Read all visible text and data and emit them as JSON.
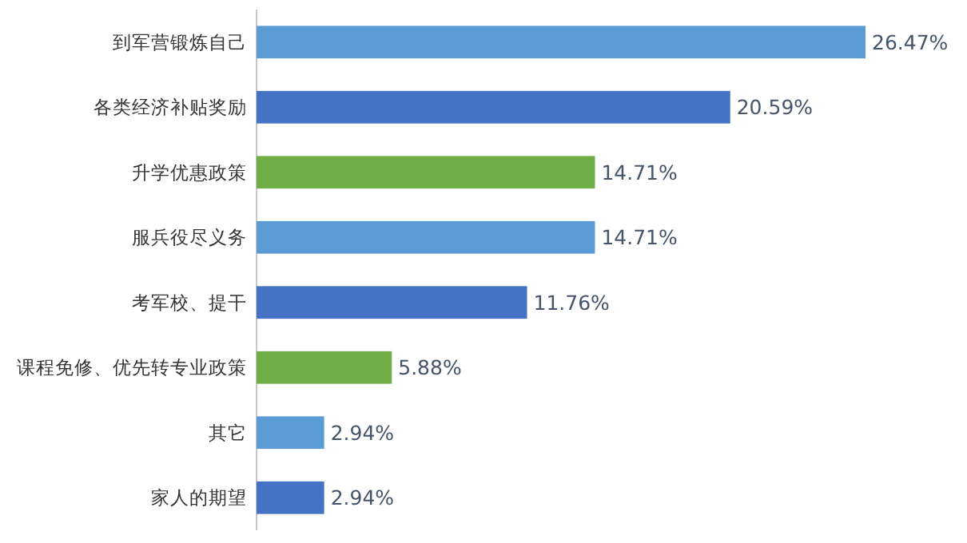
{
  "chart_data": {
    "type": "bar",
    "orientation": "horizontal",
    "categories": [
      "到军营锻炼自己",
      "各类经济补贴奖励",
      "升学优惠政策",
      "服兵役尽义务",
      "考军校、提干",
      "课程免修、优先转专业政策",
      "其它",
      "家人的期望"
    ],
    "values": [
      26.47,
      20.59,
      14.71,
      14.71,
      11.76,
      5.88,
      2.94,
      2.94
    ],
    "colors": [
      "#5b9bd5",
      "#4472c4",
      "#70ad47",
      "#5b9bd5",
      "#4472c4",
      "#70ad47",
      "#5b9bd5",
      "#4472c4"
    ],
    "value_labels": [
      "26.47%",
      "20.59%",
      "14.71%",
      "14.71%",
      "11.76%",
      "5.88%",
      "2.94%",
      "2.94%"
    ]
  }
}
